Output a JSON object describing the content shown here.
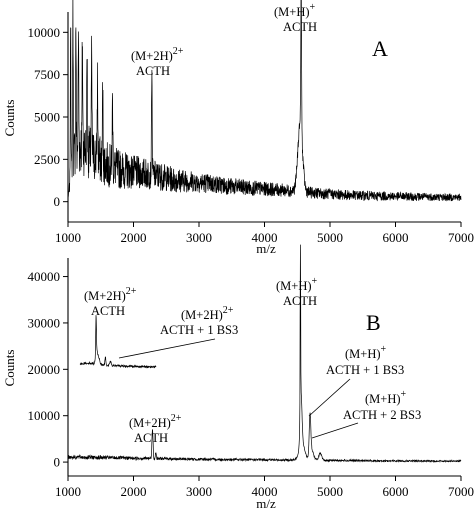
{
  "chart_data": [
    {
      "id": "A",
      "type": "line",
      "panel_letter": "A",
      "xlabel": "m/z",
      "ylabel": "Counts",
      "xlim": [
        1000,
        7000
      ],
      "ylim": [
        -1200,
        11200
      ],
      "xticks": [
        "1000",
        "2000",
        "3000",
        "4000",
        "5000",
        "6000",
        "7000"
      ],
      "yticks": [
        "0",
        "2500",
        "5000",
        "7500",
        "10000"
      ],
      "spectrum": {
        "baseline": [
          [
            1000,
            200
          ],
          [
            1050,
            1600
          ],
          [
            1100,
            2800
          ],
          [
            1200,
            3300
          ],
          [
            1400,
            2700
          ],
          [
            1600,
            2200
          ],
          [
            1800,
            1900
          ],
          [
            2000,
            1750
          ],
          [
            2300,
            1600
          ],
          [
            2600,
            1300
          ],
          [
            3000,
            1150
          ],
          [
            3500,
            900
          ],
          [
            4000,
            750
          ],
          [
            4400,
            650
          ],
          [
            4800,
            500
          ],
          [
            5200,
            400
          ],
          [
            5600,
            350
          ],
          [
            6000,
            320
          ],
          [
            6500,
            280
          ],
          [
            7000,
            250
          ]
        ],
        "noise": [
          [
            1000,
            0
          ],
          [
            1100,
            1800
          ],
          [
            1400,
            1500
          ],
          [
            2000,
            1000
          ],
          [
            3000,
            600
          ],
          [
            4000,
            420
          ],
          [
            5000,
            320
          ],
          [
            6000,
            260
          ],
          [
            7000,
            220
          ]
        ],
        "peaks": [
          {
            "x": 1040,
            "y": 9800,
            "w": 5
          },
          {
            "x": 1075,
            "y": 9200,
            "w": 5
          },
          {
            "x": 1120,
            "y": 7800,
            "w": 5
          },
          {
            "x": 1160,
            "y": 6700,
            "w": 5
          },
          {
            "x": 1220,
            "y": 6500,
            "w": 5
          },
          {
            "x": 1290,
            "y": 6000,
            "w": 5
          },
          {
            "x": 1360,
            "y": 5600,
            "w": 5
          },
          {
            "x": 1450,
            "y": 4700,
            "w": 5
          },
          {
            "x": 1530,
            "y": 4300,
            "w": 5
          },
          {
            "x": 1680,
            "y": 4000,
            "w": 5
          },
          {
            "x": 2280,
            "y": 6400,
            "w": 5
          },
          {
            "x": 4560,
            "y": 9000,
            "w": 6
          },
          {
            "x": 4545,
            "y": 4100,
            "w": 35
          }
        ]
      },
      "annotations": [
        {
          "main": "(M+2H)",
          "sup": "2+",
          "line2": "ACTH"
        },
        {
          "main": "(M+H)",
          "sup": "+",
          "line2": "ACTH"
        }
      ]
    },
    {
      "id": "B",
      "type": "line",
      "panel_letter": "B",
      "xlabel": "m/z",
      "ylabel": "Counts",
      "xlim": [
        1000,
        7000
      ],
      "ylim": [
        -3000,
        44000
      ],
      "xticks": [
        "1000",
        "2000",
        "3000",
        "4000",
        "5000",
        "6000",
        "7000"
      ],
      "yticks": [
        "0",
        "10000",
        "20000",
        "30000",
        "40000"
      ],
      "spectrum": {
        "baseline": [
          [
            1000,
            1100
          ],
          [
            1500,
            1000
          ],
          [
            2000,
            850
          ],
          [
            3000,
            600
          ],
          [
            4000,
            500
          ],
          [
            5000,
            350
          ],
          [
            6000,
            250
          ],
          [
            7000,
            200
          ]
        ],
        "noise": [
          [
            1000,
            500
          ],
          [
            2000,
            350
          ],
          [
            3000,
            280
          ],
          [
            4500,
            220
          ],
          [
            7000,
            160
          ]
        ],
        "peaks": [
          {
            "x": 2290,
            "y": 6500,
            "w": 8
          },
          {
            "x": 2340,
            "y": 1400,
            "w": 6
          },
          {
            "x": 4548,
            "y": 35000,
            "w": 4
          },
          {
            "x": 4558,
            "y": 10500,
            "w": 14
          },
          {
            "x": 4570,
            "y": 4000,
            "w": 40
          },
          {
            "x": 4695,
            "y": 8500,
            "w": 12
          },
          {
            "x": 4720,
            "y": 2200,
            "w": 30
          },
          {
            "x": 4850,
            "y": 1500,
            "w": 22
          }
        ]
      },
      "inset": {
        "xlim": [
          1400,
          2300
        ],
        "ylim": [
          19000,
          36500
        ],
        "baseline": [
          [
            1400,
            21600
          ],
          [
            1500,
            21800
          ],
          [
            1600,
            21500
          ],
          [
            1700,
            21100
          ],
          [
            1900,
            20900
          ],
          [
            2100,
            20700
          ],
          [
            2300,
            20600
          ]
        ],
        "noise": 320,
        "peaks": [
          {
            "x": 1590,
            "y": 33500,
            "w": 4
          },
          {
            "x": 1598,
            "y": 26000,
            "w": 12
          },
          {
            "x": 1625,
            "y": 23200,
            "w": 10
          },
          {
            "x": 1700,
            "y": 23800,
            "w": 5
          },
          {
            "x": 1760,
            "y": 22300,
            "w": 8
          }
        ]
      },
      "annotations": [
        {
          "main": "(M+2H)",
          "sup": "2+",
          "line2": "ACTH"
        },
        {
          "main": "(M+2H)",
          "sup": "2+",
          "line2": "ACTH + 1 BS3"
        },
        {
          "main": "(M+H)",
          "sup": "+",
          "line2": "ACTH"
        },
        {
          "main": "(M+2H)",
          "sup": "2+",
          "line2": "ACTH"
        },
        {
          "main": "(M+H)",
          "sup": "+",
          "line2": "ACTH + 1 BS3"
        },
        {
          "main": "(M+H)",
          "sup": "+",
          "line2": "ACTH + 2 BS3"
        }
      ]
    }
  ]
}
